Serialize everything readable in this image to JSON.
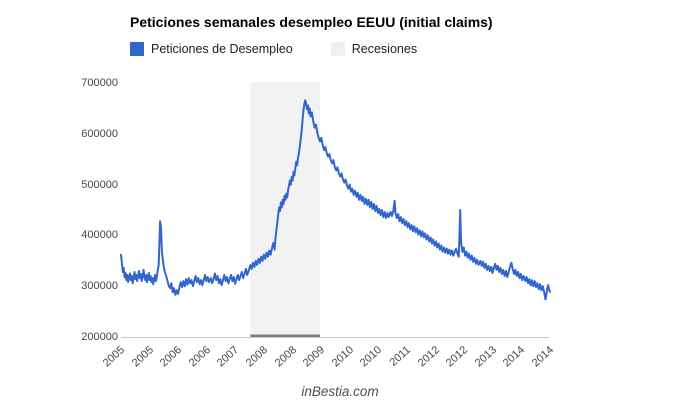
{
  "title": "Peticiones semanales desempleo EEUU (initial claims)",
  "legend": {
    "series": [
      {
        "label": "Peticiones de Desempleo",
        "color": "#3366cc"
      },
      {
        "label": "Recesiones",
        "color": "#f0f0f0"
      }
    ]
  },
  "footer": {
    "watermark": "inBestia.com"
  },
  "colors": {
    "line": "#3366cc",
    "recession_band": "#f2f2f2",
    "recession_bottom_bar": "#7d7d7d",
    "axis_line": "#c9c9c9",
    "tick_text": "#454545"
  },
  "chart_data": {
    "type": "line",
    "title": "Peticiones semanales desempleo EEUU (initial claims)",
    "series_name": "Peticiones de Desempleo",
    "xlabel": "",
    "ylabel": "",
    "x_unit": "year",
    "y_unit": "weekly initial claims",
    "x_range": [
      2005.0,
      2014.55
    ],
    "y_range": [
      200000,
      700000
    ],
    "grid": false,
    "legend_position": "top",
    "y_tick_labels": [
      "700000",
      "600000",
      "500000",
      "400000",
      "300000",
      "200000"
    ],
    "y_tick_values": [
      700000,
      600000,
      500000,
      400000,
      300000,
      200000
    ],
    "x_tick_labels": [
      "2005",
      "2005",
      "2006",
      "2006",
      "2007",
      "2008",
      "2008",
      "2009",
      "2010",
      "2010",
      "2011",
      "2012",
      "2012",
      "2013",
      "2014",
      "2014"
    ],
    "recession_band": {
      "label": "Recesiones",
      "x_start": 2007.88,
      "x_end": 2009.43
    },
    "values_scale": 1000,
    "points": [
      [
        2005.0,
        362
      ],
      [
        2005.02,
        345
      ],
      [
        2005.04,
        328
      ],
      [
        2005.06,
        336
      ],
      [
        2005.08,
        318
      ],
      [
        2005.1,
        326
      ],
      [
        2005.12,
        312
      ],
      [
        2005.14,
        322
      ],
      [
        2005.16,
        308
      ],
      [
        2005.18,
        318
      ],
      [
        2005.2,
        325
      ],
      [
        2005.22,
        312
      ],
      [
        2005.24,
        320
      ],
      [
        2005.26,
        306
      ],
      [
        2005.28,
        316
      ],
      [
        2005.3,
        328
      ],
      [
        2005.32,
        314
      ],
      [
        2005.34,
        322
      ],
      [
        2005.36,
        310
      ],
      [
        2005.38,
        320
      ],
      [
        2005.4,
        330
      ],
      [
        2005.42,
        316
      ],
      [
        2005.44,
        324
      ],
      [
        2005.46,
        310
      ],
      [
        2005.48,
        318
      ],
      [
        2005.5,
        332
      ],
      [
        2005.52,
        320
      ],
      [
        2005.54,
        312
      ],
      [
        2005.56,
        322
      ],
      [
        2005.58,
        308
      ],
      [
        2005.6,
        318
      ],
      [
        2005.62,
        326
      ],
      [
        2005.64,
        312
      ],
      [
        2005.66,
        320
      ],
      [
        2005.68,
        308
      ],
      [
        2005.7,
        316
      ],
      [
        2005.72,
        304
      ],
      [
        2005.74,
        314
      ],
      [
        2005.76,
        322
      ],
      [
        2005.78,
        310
      ],
      [
        2005.8,
        320
      ],
      [
        2005.82,
        332
      ],
      [
        2005.84,
        342
      ],
      [
        2005.87,
        428
      ],
      [
        2005.89,
        415
      ],
      [
        2005.91,
        368
      ],
      [
        2005.93,
        352
      ],
      [
        2005.95,
        340
      ],
      [
        2005.97,
        330
      ],
      [
        2006.0,
        322
      ],
      [
        2006.03,
        312
      ],
      [
        2006.06,
        302
      ],
      [
        2006.09,
        296
      ],
      [
        2006.12,
        306
      ],
      [
        2006.15,
        288
      ],
      [
        2006.18,
        296
      ],
      [
        2006.21,
        283
      ],
      [
        2006.24,
        292
      ],
      [
        2006.27,
        285
      ],
      [
        2006.3,
        298
      ],
      [
        2006.33,
        308
      ],
      [
        2006.36,
        298
      ],
      [
        2006.39,
        310
      ],
      [
        2006.42,
        300
      ],
      [
        2006.45,
        314
      ],
      [
        2006.48,
        303
      ],
      [
        2006.51,
        316
      ],
      [
        2006.54,
        306
      ],
      [
        2006.57,
        312
      ],
      [
        2006.6,
        300
      ],
      [
        2006.63,
        310
      ],
      [
        2006.66,
        320
      ],
      [
        2006.69,
        308
      ],
      [
        2006.72,
        316
      ],
      [
        2006.75,
        304
      ],
      [
        2006.78,
        312
      ],
      [
        2006.81,
        302
      ],
      [
        2006.84,
        312
      ],
      [
        2006.87,
        322
      ],
      [
        2006.9,
        310
      ],
      [
        2006.93,
        318
      ],
      [
        2006.96,
        308
      ],
      [
        2007.0,
        316
      ],
      [
        2007.03,
        306
      ],
      [
        2007.06,
        314
      ],
      [
        2007.09,
        325
      ],
      [
        2007.12,
        312
      ],
      [
        2007.15,
        320
      ],
      [
        2007.18,
        306
      ],
      [
        2007.21,
        314
      ],
      [
        2007.24,
        302
      ],
      [
        2007.27,
        312
      ],
      [
        2007.3,
        322
      ],
      [
        2007.33,
        310
      ],
      [
        2007.36,
        318
      ],
      [
        2007.39,
        306
      ],
      [
        2007.42,
        314
      ],
      [
        2007.45,
        322
      ],
      [
        2007.48,
        310
      ],
      [
        2007.51,
        318
      ],
      [
        2007.54,
        305
      ],
      [
        2007.57,
        314
      ],
      [
        2007.6,
        322
      ],
      [
        2007.63,
        312
      ],
      [
        2007.66,
        320
      ],
      [
        2007.69,
        328
      ],
      [
        2007.72,
        316
      ],
      [
        2007.75,
        324
      ],
      [
        2007.78,
        334
      ],
      [
        2007.81,
        322
      ],
      [
        2007.84,
        330
      ],
      [
        2007.88,
        342
      ],
      [
        2007.91,
        334
      ],
      [
        2007.94,
        346
      ],
      [
        2007.97,
        338
      ],
      [
        2008.0,
        350
      ],
      [
        2008.03,
        342
      ],
      [
        2008.06,
        354
      ],
      [
        2008.09,
        346
      ],
      [
        2008.12,
        358
      ],
      [
        2008.15,
        350
      ],
      [
        2008.18,
        362
      ],
      [
        2008.21,
        354
      ],
      [
        2008.24,
        366
      ],
      [
        2008.27,
        358
      ],
      [
        2008.3,
        370
      ],
      [
        2008.33,
        362
      ],
      [
        2008.36,
        374
      ],
      [
        2008.39,
        385
      ],
      [
        2008.42,
        372
      ],
      [
        2008.44,
        395
      ],
      [
        2008.46,
        410
      ],
      [
        2008.48,
        425
      ],
      [
        2008.5,
        440
      ],
      [
        2008.52,
        455
      ],
      [
        2008.54,
        448
      ],
      [
        2008.56,
        465
      ],
      [
        2008.58,
        455
      ],
      [
        2008.6,
        470
      ],
      [
        2008.62,
        462
      ],
      [
        2008.64,
        478
      ],
      [
        2008.66,
        470
      ],
      [
        2008.68,
        482
      ],
      [
        2008.7,
        475
      ],
      [
        2008.72,
        490
      ],
      [
        2008.74,
        498
      ],
      [
        2008.76,
        508
      ],
      [
        2008.78,
        500
      ],
      [
        2008.8,
        515
      ],
      [
        2008.82,
        508
      ],
      [
        2008.84,
        525
      ],
      [
        2008.86,
        518
      ],
      [
        2008.88,
        532
      ],
      [
        2008.9,
        545
      ],
      [
        2008.92,
        538
      ],
      [
        2008.94,
        552
      ],
      [
        2008.96,
        562
      ],
      [
        2008.98,
        575
      ],
      [
        2009.0,
        590
      ],
      [
        2009.02,
        605
      ],
      [
        2009.04,
        626
      ],
      [
        2009.06,
        645
      ],
      [
        2009.08,
        658
      ],
      [
        2009.1,
        666
      ],
      [
        2009.12,
        660
      ],
      [
        2009.14,
        648
      ],
      [
        2009.16,
        656
      ],
      [
        2009.18,
        640
      ],
      [
        2009.2,
        650
      ],
      [
        2009.22,
        634
      ],
      [
        2009.25,
        642
      ],
      [
        2009.28,
        624
      ],
      [
        2009.31,
        612
      ],
      [
        2009.34,
        618
      ],
      [
        2009.37,
        602
      ],
      [
        2009.4,
        592
      ],
      [
        2009.43,
        585
      ],
      [
        2009.46,
        592
      ],
      [
        2009.49,
        578
      ],
      [
        2009.52,
        568
      ],
      [
        2009.55,
        574
      ],
      [
        2009.58,
        562
      ],
      [
        2009.61,
        555
      ],
      [
        2009.64,
        560
      ],
      [
        2009.67,
        548
      ],
      [
        2009.7,
        542
      ],
      [
        2009.73,
        548
      ],
      [
        2009.76,
        534
      ],
      [
        2009.79,
        528
      ],
      [
        2009.82,
        534
      ],
      [
        2009.85,
        522
      ],
      [
        2009.88,
        516
      ],
      [
        2009.91,
        522
      ],
      [
        2009.94,
        510
      ],
      [
        2009.97,
        504
      ],
      [
        2010.0,
        510
      ],
      [
        2010.03,
        498
      ],
      [
        2010.06,
        492
      ],
      [
        2010.09,
        500
      ],
      [
        2010.12,
        486
      ],
      [
        2010.15,
        492
      ],
      [
        2010.18,
        480
      ],
      [
        2010.21,
        488
      ],
      [
        2010.24,
        476
      ],
      [
        2010.27,
        484
      ],
      [
        2010.3,
        470
      ],
      [
        2010.33,
        480
      ],
      [
        2010.36,
        468
      ],
      [
        2010.39,
        476
      ],
      [
        2010.42,
        462
      ],
      [
        2010.45,
        472
      ],
      [
        2010.48,
        460
      ],
      [
        2010.51,
        470
      ],
      [
        2010.54,
        456
      ],
      [
        2010.57,
        466
      ],
      [
        2010.6,
        452
      ],
      [
        2010.63,
        462
      ],
      [
        2010.66,
        448
      ],
      [
        2010.69,
        458
      ],
      [
        2010.72,
        444
      ],
      [
        2010.75,
        452
      ],
      [
        2010.78,
        440
      ],
      [
        2010.81,
        450
      ],
      [
        2010.84,
        436
      ],
      [
        2010.87,
        446
      ],
      [
        2010.9,
        434
      ],
      [
        2010.93,
        444
      ],
      [
        2010.96,
        436
      ],
      [
        2011.0,
        446
      ],
      [
        2011.03,
        438
      ],
      [
        2011.06,
        446
      ],
      [
        2011.09,
        468
      ],
      [
        2011.11,
        444
      ],
      [
        2011.14,
        434
      ],
      [
        2011.17,
        442
      ],
      [
        2011.2,
        428
      ],
      [
        2011.23,
        436
      ],
      [
        2011.26,
        424
      ],
      [
        2011.29,
        432
      ],
      [
        2011.32,
        420
      ],
      [
        2011.35,
        428
      ],
      [
        2011.38,
        416
      ],
      [
        2011.41,
        424
      ],
      [
        2011.44,
        412
      ],
      [
        2011.47,
        420
      ],
      [
        2011.5,
        408
      ],
      [
        2011.53,
        418
      ],
      [
        2011.56,
        406
      ],
      [
        2011.59,
        414
      ],
      [
        2011.62,
        402
      ],
      [
        2011.65,
        410
      ],
      [
        2011.68,
        398
      ],
      [
        2011.71,
        408
      ],
      [
        2011.74,
        396
      ],
      [
        2011.77,
        404
      ],
      [
        2011.8,
        392
      ],
      [
        2011.83,
        400
      ],
      [
        2011.86,
        388
      ],
      [
        2011.89,
        396
      ],
      [
        2011.92,
        384
      ],
      [
        2011.95,
        392
      ],
      [
        2011.98,
        380
      ],
      [
        2012.01,
        388
      ],
      [
        2012.04,
        376
      ],
      [
        2012.07,
        384
      ],
      [
        2012.1,
        372
      ],
      [
        2012.13,
        380
      ],
      [
        2012.16,
        368
      ],
      [
        2012.19,
        376
      ],
      [
        2012.22,
        366
      ],
      [
        2012.25,
        374
      ],
      [
        2012.28,
        364
      ],
      [
        2012.31,
        372
      ],
      [
        2012.34,
        362
      ],
      [
        2012.37,
        370
      ],
      [
        2012.4,
        360
      ],
      [
        2012.43,
        368
      ],
      [
        2012.46,
        374
      ],
      [
        2012.49,
        364
      ],
      [
        2012.52,
        358
      ],
      [
        2012.55,
        450
      ],
      [
        2012.57,
        386
      ],
      [
        2012.6,
        368
      ],
      [
        2012.63,
        376
      ],
      [
        2012.66,
        360
      ],
      [
        2012.69,
        368
      ],
      [
        2012.72,
        356
      ],
      [
        2012.75,
        364
      ],
      [
        2012.78,
        352
      ],
      [
        2012.81,
        360
      ],
      [
        2012.84,
        348
      ],
      [
        2012.87,
        356
      ],
      [
        2012.9,
        344
      ],
      [
        2012.93,
        352
      ],
      [
        2012.96,
        342
      ],
      [
        2013.0,
        350
      ],
      [
        2013.03,
        340
      ],
      [
        2013.06,
        348
      ],
      [
        2013.09,
        336
      ],
      [
        2013.12,
        344
      ],
      [
        2013.15,
        332
      ],
      [
        2013.18,
        340
      ],
      [
        2013.21,
        330
      ],
      [
        2013.24,
        338
      ],
      [
        2013.27,
        326
      ],
      [
        2013.3,
        336
      ],
      [
        2013.33,
        344
      ],
      [
        2013.36,
        332
      ],
      [
        2013.39,
        340
      ],
      [
        2013.42,
        328
      ],
      [
        2013.45,
        336
      ],
      [
        2013.48,
        324
      ],
      [
        2013.51,
        332
      ],
      [
        2013.54,
        320
      ],
      [
        2013.57,
        330
      ],
      [
        2013.6,
        318
      ],
      [
        2013.63,
        328
      ],
      [
        2013.66,
        338
      ],
      [
        2013.69,
        346
      ],
      [
        2013.72,
        334
      ],
      [
        2013.75,
        324
      ],
      [
        2013.78,
        332
      ],
      [
        2013.81,
        320
      ],
      [
        2013.84,
        328
      ],
      [
        2013.87,
        316
      ],
      [
        2013.9,
        324
      ],
      [
        2013.93,
        312
      ],
      [
        2013.96,
        320
      ],
      [
        2014.0,
        310
      ],
      [
        2014.03,
        318
      ],
      [
        2014.06,
        306
      ],
      [
        2014.09,
        314
      ],
      [
        2014.12,
        302
      ],
      [
        2014.15,
        312
      ],
      [
        2014.18,
        300
      ],
      [
        2014.21,
        310
      ],
      [
        2014.24,
        298
      ],
      [
        2014.27,
        306
      ],
      [
        2014.3,
        294
      ],
      [
        2014.33,
        304
      ],
      [
        2014.36,
        292
      ],
      [
        2014.39,
        300
      ],
      [
        2014.42,
        288
      ],
      [
        2014.45,
        274
      ],
      [
        2014.47,
        284
      ],
      [
        2014.49,
        296
      ],
      [
        2014.51,
        302
      ],
      [
        2014.53,
        294
      ],
      [
        2014.55,
        289
      ]
    ]
  }
}
